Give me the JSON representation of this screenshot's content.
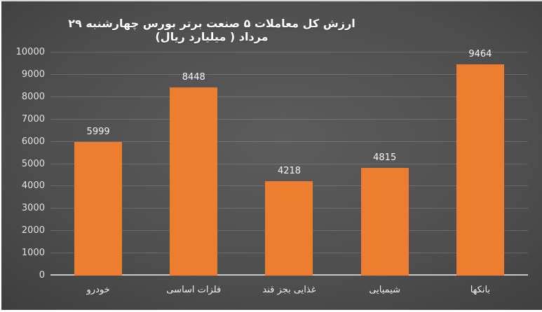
{
  "chart_data": {
    "type": "bar",
    "title": "ارزش کل معاملات ۵ صنعت برتر بورس چهارشنبه ۲۹ مرداد ( میلیارد ریال)",
    "categories": [
      "خودرو",
      "فلزات اساسی",
      "غذایی بجز قند",
      "شیمیایی",
      "بانکها"
    ],
    "values": [
      5999,
      8448,
      4218,
      4815,
      9464
    ],
    "xlabel": "",
    "ylabel": "",
    "ylim": [
      0,
      10000
    ],
    "ytick_step": 1000,
    "grid": true,
    "legend_position": "none",
    "text_direction": "rtl",
    "colors": {
      "bar": "#ED7D31",
      "background_center": "#5c5c5c",
      "background_edge": "#282828",
      "gridline": "rgba(255,255,255,0.16)",
      "axis_line": "#c6c6c6",
      "title_text": "#ffffff",
      "tick_text": "#e2e2e2",
      "value_label_text": "#f5f5f5"
    }
  }
}
